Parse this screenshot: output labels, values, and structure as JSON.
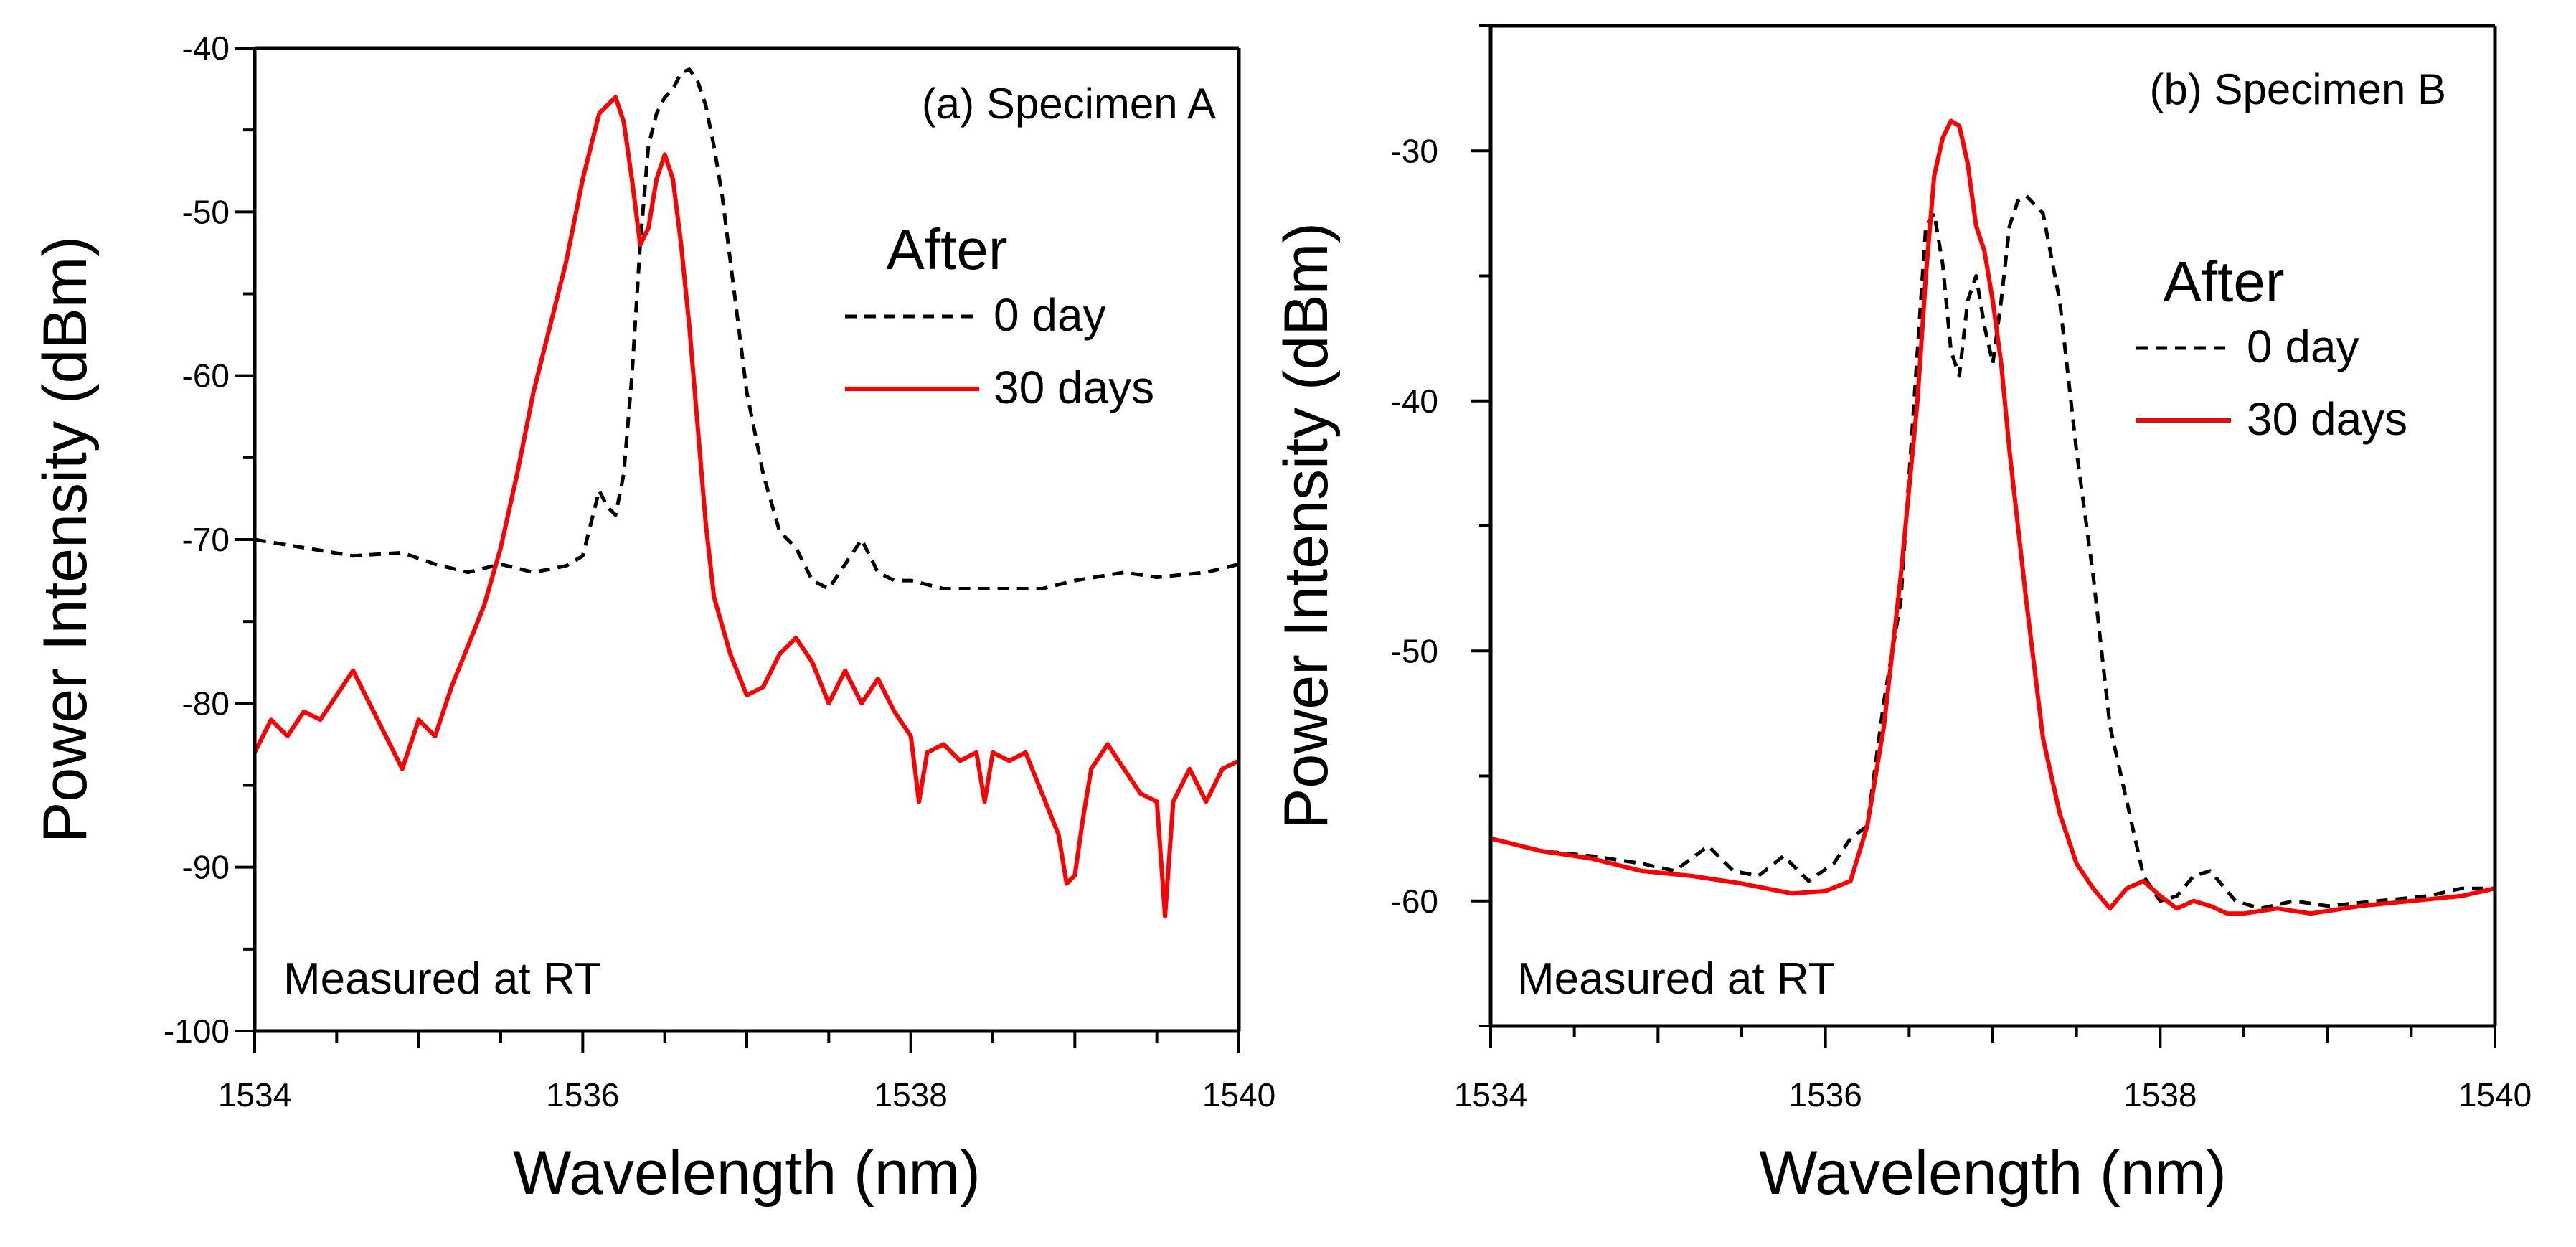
{
  "chart_data": [
    {
      "type": "line",
      "title": "(a) Specimen A",
      "xlabel": "Wavelength (nm)",
      "ylabel": "Power Intensity (dBm)",
      "xlim": [
        1534,
        1540
      ],
      "ylim": [
        -100,
        -40
      ],
      "xticks": [
        1534,
        1536,
        1538,
        1540
      ],
      "yticks": [
        -100,
        -90,
        -80,
        -70,
        -60,
        -50,
        -40
      ],
      "legend_title": "After",
      "annotation": "Measured at RT",
      "series": [
        {
          "name": "0 day",
          "color": "#000000",
          "dash": "dashed",
          "x": [
            1534.0,
            1534.3,
            1534.6,
            1534.9,
            1535.1,
            1535.3,
            1535.5,
            1535.7,
            1535.9,
            1536.0,
            1536.05,
            1536.1,
            1536.15,
            1536.2,
            1536.25,
            1536.3,
            1536.35,
            1536.4,
            1536.45,
            1536.5,
            1536.55,
            1536.6,
            1536.65,
            1536.7,
            1536.75,
            1536.8,
            1536.85,
            1536.9,
            1536.95,
            1537.0,
            1537.1,
            1537.2,
            1537.3,
            1537.4,
            1537.5,
            1537.6,
            1537.7,
            1537.75,
            1537.8,
            1537.9,
            1538.0,
            1538.2,
            1538.5,
            1538.8,
            1539.0,
            1539.3,
            1539.5,
            1539.8,
            1540.0
          ],
          "values": [
            -70.0,
            -70.5,
            -71.0,
            -70.8,
            -71.5,
            -72.0,
            -71.5,
            -72.0,
            -71.6,
            -71.0,
            -69.0,
            -67.0,
            -68.0,
            -68.5,
            -66.0,
            -60.0,
            -52.0,
            -46.0,
            -44.0,
            -43.0,
            -42.5,
            -41.5,
            -41.3,
            -42.0,
            -43.5,
            -46.0,
            -49.0,
            -53.0,
            -57.0,
            -61.0,
            -66.0,
            -69.5,
            -70.5,
            -72.5,
            -73.0,
            -71.5,
            -70.0,
            -71.0,
            -72.0,
            -72.5,
            -72.5,
            -73.0,
            -73.0,
            -73.0,
            -72.5,
            -72.0,
            -72.3,
            -72.0,
            -71.5
          ]
        },
        {
          "name": "30 days",
          "color": "#ff0000",
          "dash": "solid",
          "x": [
            1534.0,
            1534.1,
            1534.2,
            1534.3,
            1534.4,
            1534.5,
            1534.6,
            1534.7,
            1534.8,
            1534.9,
            1535.0,
            1535.1,
            1535.2,
            1535.3,
            1535.4,
            1535.5,
            1535.6,
            1535.7,
            1535.8,
            1535.9,
            1536.0,
            1536.1,
            1536.2,
            1536.25,
            1536.3,
            1536.35,
            1536.4,
            1536.45,
            1536.5,
            1536.55,
            1536.6,
            1536.65,
            1536.7,
            1536.75,
            1536.8,
            1536.9,
            1537.0,
            1537.1,
            1537.2,
            1537.3,
            1537.4,
            1537.5,
            1537.6,
            1537.7,
            1537.8,
            1537.9,
            1538.0,
            1538.05,
            1538.1,
            1538.2,
            1538.3,
            1538.4,
            1538.45,
            1538.5,
            1538.6,
            1538.7,
            1538.8,
            1538.9,
            1538.95,
            1539.0,
            1539.05,
            1539.1,
            1539.2,
            1539.3,
            1539.4,
            1539.5,
            1539.55,
            1539.6,
            1539.7,
            1539.8,
            1539.9,
            1540.0
          ],
          "values": [
            -83.0,
            -81.0,
            -82.0,
            -80.5,
            -81.0,
            -79.5,
            -78.0,
            -80.0,
            -82.0,
            -84.0,
            -81.0,
            -82.0,
            -79.0,
            -76.5,
            -74.0,
            -70.5,
            -66.0,
            -61.0,
            -57.0,
            -53.0,
            -48.0,
            -44.0,
            -43.0,
            -44.5,
            -48.0,
            -52.0,
            -51.0,
            -48.0,
            -46.5,
            -48.0,
            -52.0,
            -57.0,
            -63.0,
            -69.0,
            -73.5,
            -77.0,
            -79.5,
            -79.0,
            -77.0,
            -76.0,
            -77.5,
            -80.0,
            -78.0,
            -80.0,
            -78.5,
            -80.5,
            -82.0,
            -86.0,
            -83.0,
            -82.5,
            -83.5,
            -83.0,
            -86.0,
            -83.0,
            -83.5,
            -83.0,
            -85.5,
            -88.0,
            -91.0,
            -90.5,
            -87.0,
            -84.0,
            -82.5,
            -84.0,
            -85.5,
            -86.0,
            -93.0,
            -86.0,
            -84.0,
            -86.0,
            -84.0,
            -83.5
          ]
        }
      ]
    },
    {
      "type": "line",
      "title": "(b) Specimen B",
      "xlabel": "Wavelength (nm)",
      "ylabel": "Power Intensity (dBm)",
      "xlim": [
        1534,
        1540
      ],
      "ylim": [
        -65,
        -25
      ],
      "xticks": [
        1534,
        1536,
        1538,
        1540
      ],
      "yticks": [
        -60,
        -50,
        -40,
        -30
      ],
      "legend_title": "After",
      "annotation": "Measured at RT",
      "series": [
        {
          "name": "0 day",
          "color": "#000000",
          "dash": "dashed",
          "x": [
            1534.0,
            1534.3,
            1534.6,
            1534.9,
            1535.1,
            1535.3,
            1535.45,
            1535.6,
            1535.75,
            1535.9,
            1536.05,
            1536.15,
            1536.25,
            1536.35,
            1536.45,
            1536.55,
            1536.6,
            1536.65,
            1536.7,
            1536.75,
            1536.8,
            1536.85,
            1536.9,
            1536.95,
            1537.0,
            1537.05,
            1537.1,
            1537.15,
            1537.2,
            1537.3,
            1537.4,
            1537.5,
            1537.6,
            1537.7,
            1537.8,
            1537.9,
            1538.0,
            1538.1,
            1538.2,
            1538.3,
            1538.45,
            1538.6,
            1538.8,
            1539.0,
            1539.3,
            1539.6,
            1539.8,
            1540.0
          ],
          "values": [
            -57.5,
            -58.0,
            -58.2,
            -58.5,
            -58.8,
            -57.8,
            -58.8,
            -59.0,
            -58.2,
            -59.2,
            -58.5,
            -57.5,
            -57.0,
            -52.0,
            -48.0,
            -38.0,
            -33.0,
            -32.5,
            -34.5,
            -38.0,
            -39.0,
            -36.0,
            -35.0,
            -37.0,
            -38.5,
            -36.0,
            -33.0,
            -32.0,
            -31.8,
            -32.5,
            -36.0,
            -42.0,
            -47.0,
            -53.0,
            -56.0,
            -59.0,
            -60.0,
            -59.8,
            -59.0,
            -58.8,
            -60.0,
            -60.3,
            -60.0,
            -60.2,
            -60.0,
            -59.8,
            -59.5,
            -59.5
          ]
        },
        {
          "name": "30 days",
          "color": "#ff0000",
          "dash": "solid",
          "x": [
            1534.0,
            1534.3,
            1534.6,
            1534.9,
            1535.2,
            1535.5,
            1535.8,
            1536.0,
            1536.15,
            1536.25,
            1536.35,
            1536.45,
            1536.55,
            1536.6,
            1536.65,
            1536.7,
            1536.75,
            1536.8,
            1536.85,
            1536.9,
            1536.95,
            1537.0,
            1537.05,
            1537.1,
            1537.2,
            1537.3,
            1537.4,
            1537.5,
            1537.6,
            1537.7,
            1537.8,
            1537.9,
            1538.0,
            1538.1,
            1538.2,
            1538.3,
            1538.4,
            1538.5,
            1538.7,
            1538.9,
            1539.2,
            1539.5,
            1539.8,
            1540.0
          ],
          "values": [
            -57.5,
            -58.0,
            -58.3,
            -58.8,
            -59.0,
            -59.3,
            -59.7,
            -59.6,
            -59.2,
            -57.0,
            -53.0,
            -47.0,
            -40.0,
            -35.0,
            -31.0,
            -29.5,
            -28.8,
            -29.0,
            -30.5,
            -33.0,
            -34.0,
            -36.0,
            -38.5,
            -42.0,
            -48.0,
            -53.5,
            -56.5,
            -58.5,
            -59.5,
            -60.3,
            -59.5,
            -59.2,
            -59.8,
            -60.3,
            -60.0,
            -60.2,
            -60.5,
            -60.5,
            -60.3,
            -60.5,
            -60.2,
            -60.0,
            -59.8,
            -59.5
          ]
        }
      ]
    }
  ]
}
